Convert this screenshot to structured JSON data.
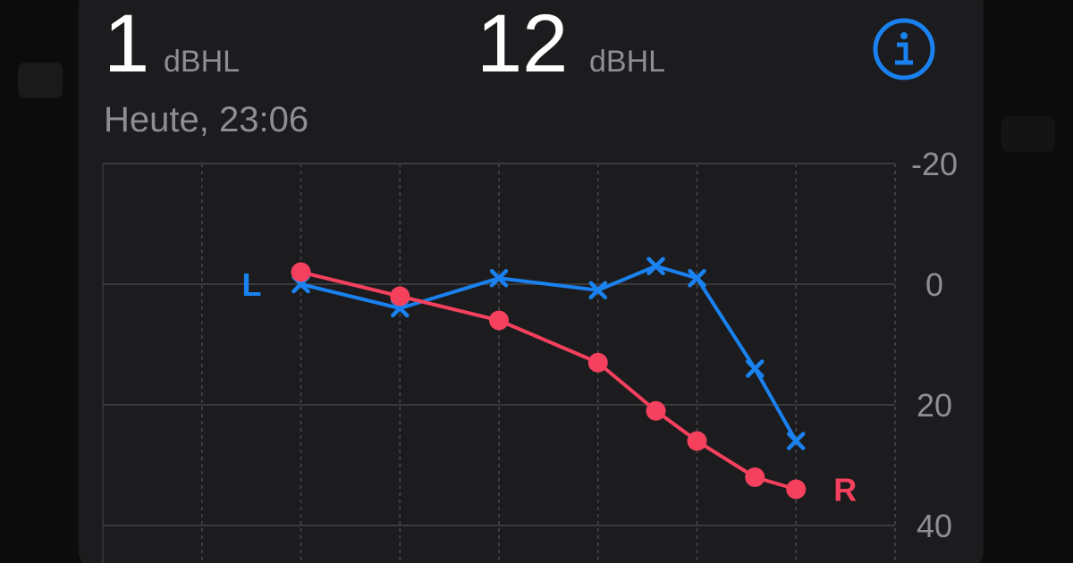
{
  "readings": [
    {
      "value": 1,
      "unit": "dBHL"
    },
    {
      "value": 12,
      "unit": "dBHL"
    }
  ],
  "date": "Heute, 23:06",
  "chart_data": {
    "type": "line",
    "x": [
      250,
      500,
      1000,
      2000,
      3000,
      4000,
      6000,
      8000
    ],
    "xlim": [
      62.5,
      16000
    ],
    "xticks": [
      62.5,
      125,
      250,
      500,
      1000,
      2000,
      4000,
      8000,
      16000
    ],
    "log_x": true,
    "ylim": [
      -20,
      40
    ],
    "yticks": [
      -20,
      0,
      20,
      40
    ],
    "y_inverted": true,
    "grid": true,
    "series": [
      {
        "name": "L",
        "color": "#1a82f0",
        "marker": "x",
        "values": [
          0,
          4,
          -1,
          1,
          -3,
          -1,
          14,
          26
        ]
      },
      {
        "name": "R",
        "color": "#f5405e",
        "marker": "circle",
        "values": [
          -2,
          2,
          6,
          13,
          21,
          26,
          32,
          34
        ]
      }
    ]
  }
}
